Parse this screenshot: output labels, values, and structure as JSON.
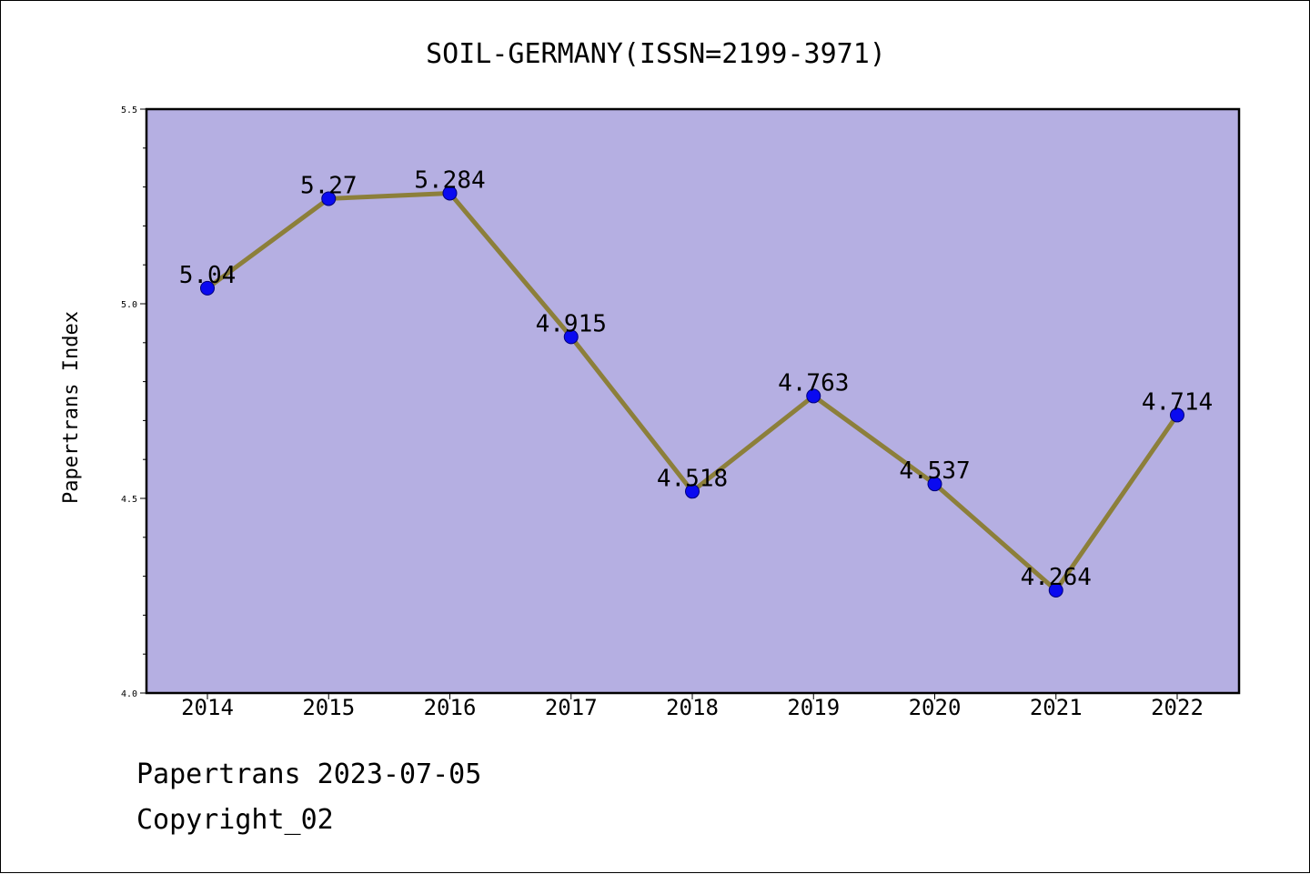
{
  "chart_data": {
    "type": "line",
    "title": "SOIL-GERMANY(ISSN=2199-3971)",
    "xlabel": "",
    "ylabel": "Papertrans Index",
    "categories": [
      "2014",
      "2015",
      "2016",
      "2017",
      "2018",
      "2019",
      "2020",
      "2021",
      "2022"
    ],
    "values": [
      5.04,
      5.27,
      5.284,
      4.915,
      4.518,
      4.763,
      4.537,
      4.264,
      4.714
    ],
    "data_labels": [
      "5.04",
      "5.27",
      "5.284",
      "4.915",
      "4.518",
      "4.763",
      "4.537",
      "4.264",
      "4.714"
    ],
    "ylim": [
      4.0,
      5.5
    ],
    "yticks": [
      "4.0",
      "4.5",
      "5.0",
      "5.5"
    ],
    "grid": false,
    "colors": {
      "plot_background": "#b5afe2",
      "line": "#8c7f3a",
      "marker": "#0a0af0",
      "marker_edge": "#00007a"
    }
  },
  "footer": {
    "line1": "Papertrans 2023-07-05",
    "line2": "Copyright_02"
  }
}
